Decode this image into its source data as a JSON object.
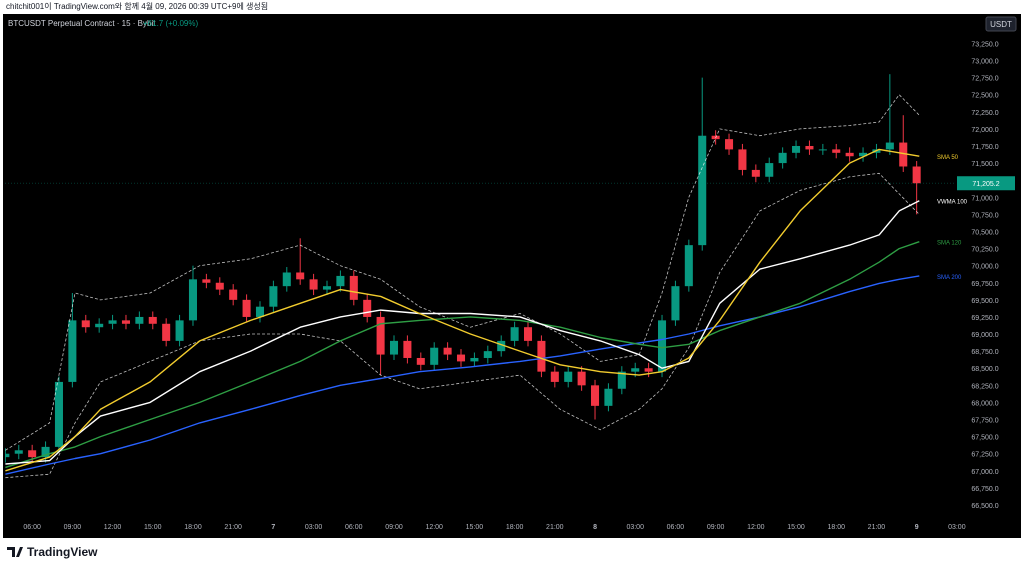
{
  "header": "chitchit001이 TradingView.com와 함께 4월 09, 2026 00:39 UTC+9에 생성됨",
  "currency": "USDT",
  "brand": "TradingView",
  "chart_data": {
    "type": "candlestick",
    "title": "BTCUSDT Perpetual Contract · 15 · Bybit",
    "change": "+61.7 (+0.09%)",
    "up_color": "#089981",
    "down_color": "#f23645",
    "grid": false,
    "xlim": [
      3.6,
      77.1
    ],
    "ylim": [
      66310,
      73680
    ],
    "xticks": [
      {
        "value": 6,
        "label": "06:00"
      },
      {
        "value": 9,
        "label": "09:00"
      },
      {
        "value": 12,
        "label": "12:00"
      },
      {
        "value": 15,
        "label": "15:00"
      },
      {
        "value": 18,
        "label": "18:00"
      },
      {
        "value": 21,
        "label": "21:00"
      },
      {
        "value": 24,
        "label": "7"
      },
      {
        "value": 27,
        "label": "03:00"
      },
      {
        "value": 30,
        "label": "06:00"
      },
      {
        "value": 33,
        "label": "09:00"
      },
      {
        "value": 36,
        "label": "12:00"
      },
      {
        "value": 39,
        "label": "15:00"
      },
      {
        "value": 42,
        "label": "18:00"
      },
      {
        "value": 45,
        "label": "21:00"
      },
      {
        "value": 48,
        "label": "8"
      },
      {
        "value": 51,
        "label": "03:00"
      },
      {
        "value": 54,
        "label": "06:00"
      },
      {
        "value": 57,
        "label": "09:00"
      },
      {
        "value": 60,
        "label": "12:00"
      },
      {
        "value": 63,
        "label": "15:00"
      },
      {
        "value": 66,
        "label": "18:00"
      },
      {
        "value": 69,
        "label": "21:00"
      },
      {
        "value": 72,
        "label": "9"
      },
      {
        "value": 75,
        "label": "03:00"
      }
    ],
    "yticks": [
      {
        "value": 66500,
        "label": "66,500.0"
      },
      {
        "value": 66750,
        "label": "66,750.0"
      },
      {
        "value": 67000,
        "label": "67,000.0"
      },
      {
        "value": 67250,
        "label": "67,250.0"
      },
      {
        "value": 67500,
        "label": "67,500.0"
      },
      {
        "value": 67750,
        "label": "67,750.0"
      },
      {
        "value": 68000,
        "label": "68,000.0"
      },
      {
        "value": 68250,
        "label": "68,250.0"
      },
      {
        "value": 68500,
        "label": "68,500.0"
      },
      {
        "value": 68750,
        "label": "68,750.0"
      },
      {
        "value": 69000,
        "label": "69,000.0"
      },
      {
        "value": 69250,
        "label": "69,250.0"
      },
      {
        "value": 69500,
        "label": "69,500.0"
      },
      {
        "value": 69750,
        "label": "69,750.0"
      },
      {
        "value": 70000,
        "label": "70,000.0"
      },
      {
        "value": 70250,
        "label": "70,250.0"
      },
      {
        "value": 70500,
        "label": "70,500.0"
      },
      {
        "value": 70750,
        "label": "70,750.0"
      },
      {
        "value": 71000,
        "label": "71,000.0"
      },
      {
        "value": 71250,
        "label": "71,250.0"
      },
      {
        "value": 71500,
        "label": "71,500.0"
      },
      {
        "value": 71750,
        "label": "71,750.0"
      },
      {
        "value": 72000,
        "label": "72,000.0"
      },
      {
        "value": 72250,
        "label": "72,250.0"
      },
      {
        "value": 72500,
        "label": "72,500.0"
      },
      {
        "value": 72750,
        "label": "72,750.0"
      },
      {
        "value": 73000,
        "label": "73,000.0"
      },
      {
        "value": 73250,
        "label": "73,250.0"
      }
    ],
    "candles": {
      "x": [
        4,
        5,
        6,
        7,
        8,
        9,
        10,
        11,
        12,
        13,
        14,
        15,
        16,
        17,
        18,
        19,
        20,
        21,
        22,
        23,
        24,
        25,
        26,
        27,
        28,
        29,
        30,
        31,
        32,
        33,
        34,
        35,
        36,
        37,
        38,
        39,
        40,
        41,
        42,
        43,
        44,
        45,
        46,
        47,
        48,
        49,
        50,
        51,
        52,
        53,
        54,
        55,
        56,
        57,
        58,
        59,
        60,
        61,
        62,
        63,
        64,
        65,
        66,
        67,
        68,
        69,
        70,
        71,
        72
      ],
      "open": [
        67200,
        67250,
        67300,
        67200,
        67350,
        68300,
        69200,
        69100,
        69150,
        69200,
        69150,
        69250,
        69150,
        68900,
        69200,
        69800,
        69750,
        69650,
        69500,
        69250,
        69400,
        69700,
        69900,
        69800,
        69650,
        69700,
        69850,
        69500,
        69250,
        68700,
        68900,
        68650,
        68550,
        68800,
        68700,
        68600,
        68650,
        68750,
        68900,
        69100,
        68900,
        68450,
        68300,
        68450,
        68250,
        67950,
        68200,
        68450,
        68500,
        68450,
        69200,
        69700,
        70300,
        71900,
        71850,
        71700,
        71400,
        71300,
        71500,
        71650,
        71750,
        71700,
        71700,
        71650,
        71600,
        71650,
        71700,
        71800,
        71450
      ],
      "high": [
        67330,
        67380,
        67380,
        67430,
        68380,
        69600,
        69280,
        69230,
        69280,
        69280,
        69330,
        69330,
        69230,
        69280,
        70000,
        69880,
        69830,
        69730,
        69580,
        69480,
        69780,
        69980,
        70400,
        69880,
        69780,
        69930,
        69930,
        69580,
        69330,
        68980,
        68980,
        68730,
        68880,
        68880,
        68780,
        68730,
        68830,
        68980,
        69180,
        69180,
        68980,
        68530,
        68530,
        68530,
        68330,
        68280,
        68530,
        68580,
        68580,
        69280,
        69780,
        70380,
        72750,
        71980,
        71930,
        71780,
        71480,
        71580,
        71730,
        71830,
        71830,
        71780,
        71780,
        71730,
        71730,
        71780,
        72800,
        72200,
        71530
      ],
      "low": [
        67120,
        67170,
        67120,
        67120,
        67270,
        68220,
        69020,
        69020,
        69070,
        69070,
        69070,
        69070,
        68820,
        68820,
        69120,
        69670,
        69570,
        69420,
        69170,
        69170,
        69320,
        69620,
        69720,
        69570,
        69570,
        69620,
        69420,
        69170,
        68400,
        68620,
        68570,
        68470,
        68470,
        68620,
        68520,
        68520,
        68570,
        68670,
        68820,
        68820,
        68370,
        68220,
        68220,
        68170,
        67750,
        67870,
        68120,
        68370,
        68370,
        68370,
        69120,
        69620,
        70220,
        71770,
        71620,
        71320,
        71220,
        71220,
        71420,
        71570,
        71620,
        71620,
        71570,
        71520,
        71520,
        71570,
        71620,
        71370,
        70750
      ],
      "close": [
        67250,
        67300,
        67200,
        67350,
        68300,
        69200,
        69100,
        69150,
        69200,
        69150,
        69250,
        69150,
        68900,
        69200,
        69800,
        69750,
        69650,
        69500,
        69250,
        69400,
        69700,
        69900,
        69800,
        69650,
        69700,
        69850,
        69500,
        69250,
        68700,
        68900,
        68650,
        68550,
        68800,
        68700,
        68600,
        68650,
        68750,
        68900,
        69100,
        68900,
        68450,
        68300,
        68450,
        68250,
        67950,
        68200,
        68450,
        68500,
        68450,
        69200,
        69700,
        70300,
        71900,
        71850,
        71700,
        71400,
        71300,
        71500,
        71650,
        71750,
        71700,
        71700,
        71650,
        71600,
        71650,
        71700,
        71800,
        71450,
        71205.2
      ],
      "last_label": "71,205.2"
    },
    "x": [
      4,
      7.3,
      9.2,
      11.1,
      14.8,
      18.5,
      22.3,
      26,
      29,
      32,
      34.9,
      38.7,
      42.4,
      45.4,
      48.4,
      51.3,
      53,
      55,
      57.3,
      60.3,
      63.3,
      67,
      69.2,
      70.7,
      72.2
    ],
    "series": [
      {
        "color": "#ffffff",
        "dashed": true,
        "values": [
          67300,
          67700,
          69600,
          69500,
          69600,
          70000,
          70100,
          70300,
          70000,
          69800,
          69400,
          69100,
          69300,
          69000,
          68600,
          68700,
          69600,
          71000,
          72000,
          71900,
          72000,
          72050,
          72100,
          72500,
          72200
        ]
      },
      {
        "color": "#ffffff",
        "dashed": true,
        "values": [
          66900,
          66950,
          67700,
          68300,
          68600,
          68900,
          69000,
          69000,
          68900,
          68400,
          68200,
          68300,
          68400,
          67900,
          67600,
          67900,
          68200,
          68800,
          69900,
          70800,
          71100,
          71300,
          71350,
          71050,
          70750
        ]
      },
      {
        "name": "SMA 200",
        "color": "#2962ff",
        "values": [
          66950,
          67100,
          67180,
          67250,
          67450,
          67700,
          67900,
          68100,
          68250,
          68350,
          68450,
          68520,
          68600,
          68680,
          68780,
          68870,
          68920,
          69000,
          69120,
          69250,
          69400,
          69620,
          69740,
          69800,
          69850
        ]
      },
      {
        "name": "SMA 120",
        "color": "#2e9e44",
        "values": [
          67050,
          67250,
          67350,
          67500,
          67750,
          68000,
          68300,
          68600,
          68900,
          69150,
          69200,
          69250,
          69200,
          69100,
          68950,
          68850,
          68800,
          68850,
          69050,
          69250,
          69450,
          69800,
          70050,
          70250,
          70350
        ]
      },
      {
        "name": "VWMA 100",
        "color": "#ffffff",
        "values": [
          67100,
          67150,
          67500,
          67800,
          68000,
          68450,
          68750,
          69100,
          69250,
          69350,
          69300,
          69300,
          69250,
          69050,
          68900,
          68700,
          68500,
          68600,
          69450,
          69950,
          70100,
          70300,
          70450,
          70800,
          70950
        ]
      },
      {
        "name": "SMA 50",
        "color": "#f2cc2e",
        "values": [
          67000,
          67200,
          67500,
          67900,
          68300,
          68900,
          69200,
          69450,
          69650,
          69550,
          69300,
          69000,
          68750,
          68550,
          68450,
          68400,
          68450,
          68650,
          69200,
          70050,
          70800,
          71500,
          71700,
          71650,
          71600
        ]
      }
    ]
  }
}
